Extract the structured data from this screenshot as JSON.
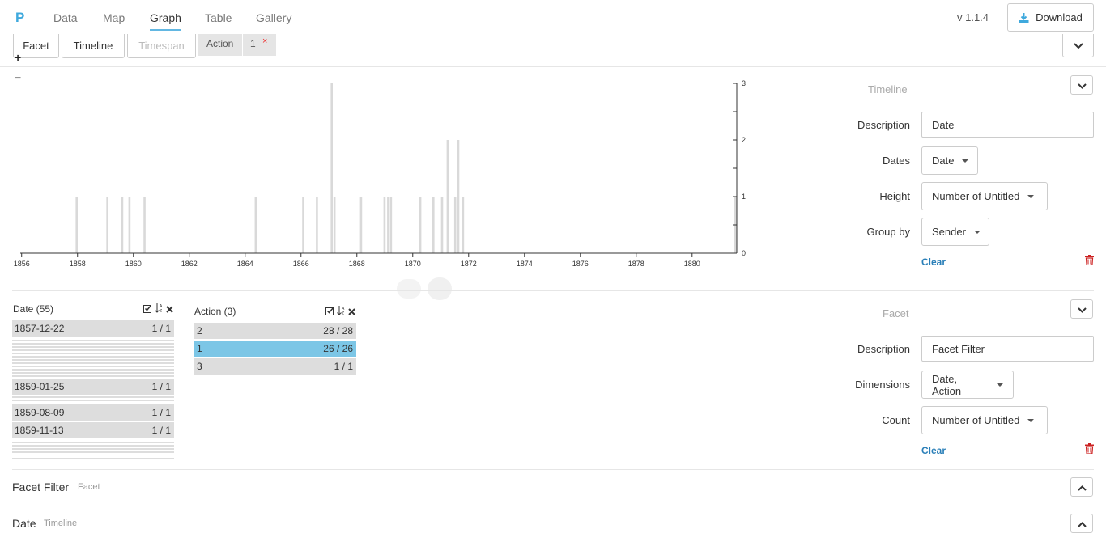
{
  "nav": {
    "logo": "P",
    "items": [
      {
        "label": "Data",
        "active": false
      },
      {
        "label": "Map",
        "active": false
      },
      {
        "label": "Graph",
        "active": true
      },
      {
        "label": "Table",
        "active": false
      },
      {
        "label": "Gallery",
        "active": false
      }
    ],
    "version": "v 1.1.4",
    "download_label": "Download"
  },
  "tabs": {
    "facet": "Facet",
    "timeline": "Timeline",
    "timespan": "Timespan",
    "filter_chip": {
      "field": "Action",
      "value": "1",
      "remove": "×"
    }
  },
  "zoom": {
    "in": "+",
    "out": "−"
  },
  "chart_data": {
    "type": "bar",
    "x_ticks": [
      "1856",
      "1858",
      "1860",
      "1862",
      "1864",
      "1866",
      "1868",
      "1870",
      "1872",
      "1874",
      "1876",
      "1878",
      "1880"
    ],
    "y_ticks": [
      "0",
      "1",
      "2",
      "3"
    ],
    "xlim": [
      1855.95,
      1881.6
    ],
    "ylim": [
      0,
      3
    ],
    "bars": [
      {
        "x": 1857.97,
        "y": 1
      },
      {
        "x": 1859.07,
        "y": 1
      },
      {
        "x": 1859.6,
        "y": 1
      },
      {
        "x": 1859.86,
        "y": 1
      },
      {
        "x": 1860.4,
        "y": 1
      },
      {
        "x": 1864.38,
        "y": 1
      },
      {
        "x": 1866.08,
        "y": 1
      },
      {
        "x": 1866.57,
        "y": 1
      },
      {
        "x": 1867.1,
        "y": 3
      },
      {
        "x": 1867.2,
        "y": 1
      },
      {
        "x": 1868.15,
        "y": 1
      },
      {
        "x": 1868.99,
        "y": 1
      },
      {
        "x": 1869.12,
        "y": 1
      },
      {
        "x": 1869.22,
        "y": 1
      },
      {
        "x": 1870.27,
        "y": 1
      },
      {
        "x": 1870.74,
        "y": 1
      },
      {
        "x": 1871.05,
        "y": 1
      },
      {
        "x": 1871.25,
        "y": 2
      },
      {
        "x": 1871.52,
        "y": 1
      },
      {
        "x": 1871.63,
        "y": 2
      },
      {
        "x": 1871.8,
        "y": 1
      },
      {
        "x": 1881.55,
        "y": 1
      }
    ]
  },
  "timeline_panel": {
    "title": "Timeline",
    "description_label": "Description",
    "description_value": "Date",
    "dates_label": "Dates",
    "dates_value": "Date",
    "height_label": "Height",
    "height_value": "Number of Untitled",
    "group_label": "Group by",
    "group_value": "Sender",
    "clear": "Clear"
  },
  "facet_date": {
    "header": "Date (55)",
    "rows": [
      {
        "label": "1857-12-22",
        "count": "1 / 1"
      },
      {
        "label": "1859-01-25",
        "count": "1 / 1"
      },
      {
        "label": "1859-08-09",
        "count": "1 / 1"
      },
      {
        "label": "1859-11-13",
        "count": "1 / 1"
      }
    ]
  },
  "facet_action": {
    "header": "Action (3)",
    "rows": [
      {
        "label": "2",
        "count": "28 / 28",
        "selected": false
      },
      {
        "label": "1",
        "count": "26 / 26",
        "selected": true
      },
      {
        "label": "3",
        "count": "1 / 1",
        "selected": false
      }
    ]
  },
  "facet_panel": {
    "title": "Facet",
    "description_label": "Description",
    "description_value": "Facet Filter",
    "dimensions_label": "Dimensions",
    "dimensions_value": "Date, Action",
    "count_label": "Count",
    "count_value": "Number of Untitled",
    "clear": "Clear"
  },
  "collapsed": [
    {
      "title": "Facet Filter",
      "subtitle": "Facet"
    },
    {
      "title": "Date",
      "subtitle": "Timeline"
    }
  ],
  "colors": {
    "accent": "#3fa9dd",
    "selected_row": "#7cc6e6",
    "bar": "#d9d9d9",
    "delete": "#cc2222"
  }
}
